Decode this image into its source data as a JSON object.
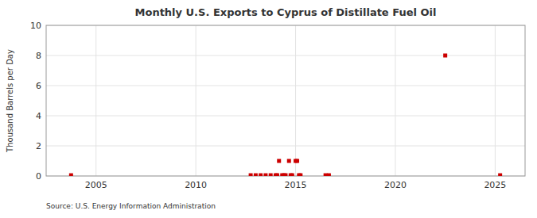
{
  "chart_data": {
    "type": "scatter",
    "title": "Monthly U.S. Exports to Cyprus of Distillate Fuel Oil",
    "y_label": "Thousand Barrels per Day",
    "annotations": [
      "Source: U.S. Energy Information Administration"
    ],
    "x": [
      2003.75,
      2012.75,
      2013.0,
      2013.25,
      2013.5,
      2013.75,
      2014.0,
      2014.08,
      2014.17,
      2014.33,
      2014.42,
      2014.5,
      2014.67,
      2014.75,
      2014.83,
      2015.0,
      2015.08,
      2015.17,
      2015.25,
      2016.5,
      2016.67,
      2022.5,
      2025.25
    ],
    "values": [
      0.05,
      0.05,
      0.05,
      0.05,
      0.05,
      0.05,
      0.05,
      0.05,
      1.0,
      0.05,
      0.05,
      0.05,
      1.0,
      0.05,
      0.05,
      1.0,
      1.0,
      0.05,
      0.05,
      0.05,
      0.05,
      8.0,
      0.05
    ],
    "color": "#cc0000",
    "marker": "square",
    "xlim": [
      2002.5,
      2026.5
    ],
    "ylim": [
      0,
      10
    ],
    "xticks": [
      2005,
      2010,
      2015,
      2020,
      2025
    ],
    "yticks": [
      0,
      2,
      4,
      6,
      8,
      10
    ],
    "grid": true
  }
}
